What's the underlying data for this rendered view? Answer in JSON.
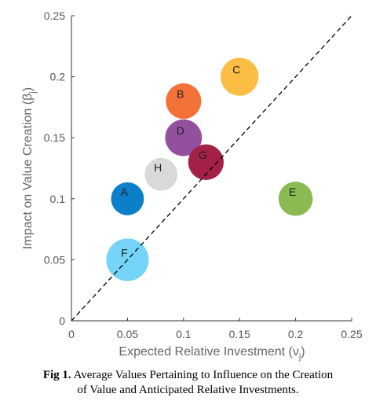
{
  "chart_data": {
    "type": "scatter",
    "xlabel": "Expected Relative Investment (ν",
    "xlabel_sub": "j",
    "xlabel_close": ")",
    "ylabel": "Impact on Value Creation (β",
    "ylabel_sub": "j",
    "ylabel_close": ")",
    "xlim": [
      0,
      0.25
    ],
    "ylim": [
      0,
      0.25
    ],
    "xticks": [
      "0",
      "0.05",
      "0.1",
      "0.15",
      "0.2",
      "0.25"
    ],
    "yticks": [
      "0",
      "0.05",
      "0.1",
      "0.15",
      "0.2",
      "0.25"
    ],
    "xtick_values": [
      0,
      0.05,
      0.1,
      0.15,
      0.2,
      0.25
    ],
    "ytick_values": [
      0,
      0.05,
      0.1,
      0.15,
      0.2,
      0.25
    ],
    "grid": false,
    "reference_line": "y = x (dashed)",
    "points": [
      {
        "label": "A",
        "x": 0.05,
        "y": 0.1,
        "size": 0.6,
        "color": "#0b7fc7"
      },
      {
        "label": "B",
        "x": 0.1,
        "y": 0.18,
        "size": 0.7,
        "color": "#f4713a"
      },
      {
        "label": "C",
        "x": 0.15,
        "y": 0.2,
        "size": 0.8,
        "color": "#fbbd44"
      },
      {
        "label": "D",
        "x": 0.1,
        "y": 0.15,
        "size": 0.75,
        "color": "#92509e"
      },
      {
        "label": "E",
        "x": 0.2,
        "y": 0.1,
        "size": 0.65,
        "color": "#8bba52"
      },
      {
        "label": "F",
        "x": 0.05,
        "y": 0.05,
        "size": 1.0,
        "color": "#74d3f6"
      },
      {
        "label": "G",
        "x": 0.12,
        "y": 0.13,
        "size": 0.7,
        "color": "#a32146"
      },
      {
        "label": "H",
        "x": 0.08,
        "y": 0.12,
        "size": 0.6,
        "color": "#d9d9d9"
      }
    ]
  },
  "caption": {
    "prefix": "Fig 1.",
    "line1": " Average Values Pertaining to Influence on the Creation",
    "line2": "of Value and Anticipated Relative Investments."
  }
}
